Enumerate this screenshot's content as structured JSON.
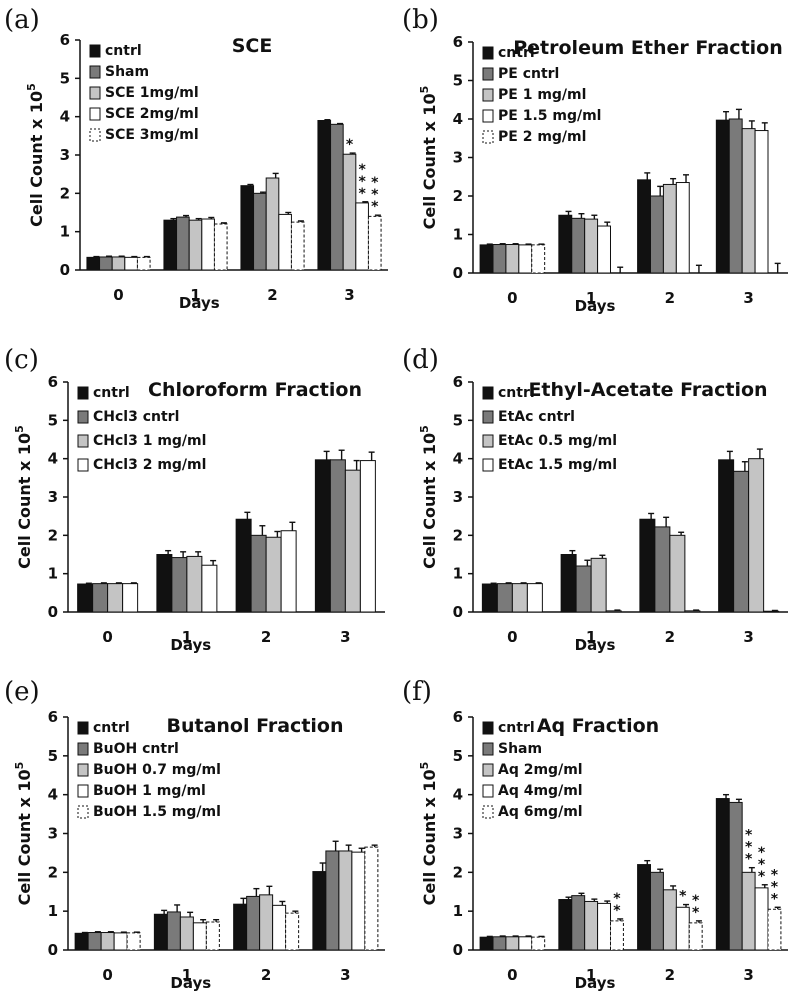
{
  "chart_data": [
    {
      "panel": "(a)",
      "type": "bar",
      "title": "SCE",
      "ylabel": "Cell Count x 10^5",
      "xlabel": "Days",
      "categories": [
        "0",
        "1",
        "2",
        "3"
      ],
      "ylim": [
        0,
        6
      ],
      "yticks": [
        0,
        1,
        2,
        3,
        4,
        5,
        6
      ],
      "legend_position": "top-left",
      "series": [
        {
          "name": "cntrl",
          "color": "#111111",
          "values": [
            0.33,
            1.3,
            2.2,
            3.9
          ],
          "errors": [
            0.02,
            0.04,
            0.03,
            0.02
          ]
        },
        {
          "name": "Sham",
          "color": "#7a7a7a",
          "values": [
            0.34,
            1.38,
            2.0,
            3.8
          ],
          "errors": [
            0.02,
            0.04,
            0.03,
            0.02
          ]
        },
        {
          "name": "SCE 1mg/ml",
          "color": "#c4c4c4",
          "values": [
            0.34,
            1.3,
            2.4,
            3.02
          ],
          "errors": [
            0.02,
            0.04,
            0.12,
            0.03
          ],
          "stars": [
            "",
            "",
            "",
            "*"
          ]
        },
        {
          "name": "SCE 2mg/ml",
          "color": "#ffffff",
          "values": [
            0.33,
            1.33,
            1.45,
            1.75
          ],
          "errors": [
            0.02,
            0.04,
            0.05,
            0.03
          ],
          "stars": [
            "",
            "",
            "",
            "***"
          ]
        },
        {
          "name": "SCE 3mg/ml",
          "color": "#ffffff",
          "dashed": true,
          "values": [
            0.33,
            1.2,
            1.25,
            1.4
          ],
          "errors": [
            0.02,
            0.03,
            0.03,
            0.03
          ],
          "stars": [
            "",
            "",
            "",
            "***"
          ]
        }
      ]
    },
    {
      "panel": "(b)",
      "type": "bar",
      "title": "Petroleum Ether Fraction",
      "ylabel": "Cell Count x 10^5",
      "xlabel": "Days",
      "categories": [
        "0",
        "1",
        "2",
        "3"
      ],
      "ylim": [
        0,
        6
      ],
      "yticks": [
        0,
        1,
        2,
        3,
        4,
        5,
        6
      ],
      "legend_position": "top-left",
      "series": [
        {
          "name": "cntrl",
          "color": "#111111",
          "values": [
            0.73,
            1.5,
            2.42,
            3.97
          ],
          "errors": [
            0.02,
            0.1,
            0.18,
            0.22
          ]
        },
        {
          "name": "PE cntrl",
          "color": "#7a7a7a",
          "values": [
            0.74,
            1.42,
            2.0,
            4.0
          ],
          "errors": [
            0.02,
            0.12,
            0.25,
            0.25
          ]
        },
        {
          "name": "PE 1 mg/ml",
          "color": "#c4c4c4",
          "values": [
            0.74,
            1.4,
            2.3,
            3.75
          ],
          "errors": [
            0.02,
            0.1,
            0.15,
            0.2
          ]
        },
        {
          "name": "PE 1.5 mg/ml",
          "color": "#ffffff",
          "values": [
            0.73,
            1.22,
            2.35,
            3.7
          ],
          "errors": [
            0.02,
            0.1,
            0.2,
            0.2
          ]
        },
        {
          "name": "PE 2 mg/ml",
          "color": "#ffffff",
          "dashed": true,
          "values": [
            0.73,
            0.0,
            0.0,
            0.0
          ],
          "errors": [
            0.02,
            0.15,
            0.2,
            0.25
          ]
        }
      ]
    },
    {
      "panel": "(c)",
      "type": "bar",
      "title": "Chloroform Fraction",
      "ylabel": "Cell Count x 10^5",
      "xlabel": "Days",
      "categories": [
        "0",
        "1",
        "2",
        "3"
      ],
      "ylim": [
        0,
        6
      ],
      "yticks": [
        0,
        1,
        2,
        3,
        4,
        5,
        6
      ],
      "legend_position": "top-left",
      "series": [
        {
          "name": "cntrl",
          "color": "#111111",
          "values": [
            0.73,
            1.5,
            2.42,
            3.97
          ],
          "errors": [
            0.02,
            0.1,
            0.18,
            0.22
          ]
        },
        {
          "name": "CHcl3 cntrl",
          "color": "#7a7a7a",
          "values": [
            0.74,
            1.42,
            2.0,
            3.97
          ],
          "errors": [
            0.02,
            0.15,
            0.25,
            0.25
          ]
        },
        {
          "name": "CHcl3 1 mg/ml",
          "color": "#c4c4c4",
          "values": [
            0.74,
            1.45,
            1.95,
            3.7
          ],
          "errors": [
            0.02,
            0.12,
            0.15,
            0.25
          ]
        },
        {
          "name": "CHcl3 2 mg/ml",
          "color": "#ffffff",
          "values": [
            0.74,
            1.22,
            2.12,
            3.95
          ],
          "errors": [
            0.02,
            0.12,
            0.22,
            0.22
          ]
        }
      ]
    },
    {
      "panel": "(d)",
      "type": "bar",
      "title": "Ethyl-Acetate Fraction",
      "ylabel": "Cell Count x 10^5",
      "xlabel": "Days",
      "categories": [
        "0",
        "1",
        "2",
        "3"
      ],
      "ylim": [
        0,
        6
      ],
      "yticks": [
        0,
        1,
        2,
        3,
        4,
        5,
        6
      ],
      "legend_position": "top-left",
      "series": [
        {
          "name": "cntrl",
          "color": "#111111",
          "values": [
            0.73,
            1.5,
            2.42,
            3.97
          ],
          "errors": [
            0.02,
            0.1,
            0.15,
            0.22
          ]
        },
        {
          "name": "EtAc cntrl",
          "color": "#7a7a7a",
          "values": [
            0.74,
            1.2,
            2.22,
            3.67
          ],
          "errors": [
            0.02,
            0.15,
            0.25,
            0.25
          ]
        },
        {
          "name": "EtAc 0.5 mg/ml",
          "color": "#c4c4c4",
          "values": [
            0.74,
            1.4,
            2.0,
            4.0
          ],
          "errors": [
            0.02,
            0.08,
            0.08,
            0.25
          ]
        },
        {
          "name": "EtAc 1.5 mg/ml",
          "color": "#ffffff",
          "values": [
            0.74,
            0.03,
            0.03,
            0.02
          ],
          "errors": [
            0.02,
            0.02,
            0.02,
            0.02
          ]
        }
      ]
    },
    {
      "panel": "(e)",
      "type": "bar",
      "title": "Butanol Fraction",
      "ylabel": "Cell Count x 10^5",
      "xlabel": "Days",
      "categories": [
        "0",
        "1",
        "2",
        "3"
      ],
      "ylim": [
        0,
        6
      ],
      "yticks": [
        0,
        1,
        2,
        3,
        4,
        5,
        6
      ],
      "legend_position": "top-left",
      "series": [
        {
          "name": "cntrl",
          "color": "#111111",
          "values": [
            0.43,
            0.92,
            1.18,
            2.02
          ],
          "errors": [
            0.02,
            0.1,
            0.15,
            0.22
          ]
        },
        {
          "name": "BuOH cntrl",
          "color": "#7a7a7a",
          "values": [
            0.45,
            0.98,
            1.38,
            2.55
          ],
          "errors": [
            0.02,
            0.18,
            0.2,
            0.25
          ]
        },
        {
          "name": "BuOH 0.7 mg/ml",
          "color": "#c4c4c4",
          "values": [
            0.45,
            0.85,
            1.42,
            2.55
          ],
          "errors": [
            0.02,
            0.12,
            0.22,
            0.15
          ]
        },
        {
          "name": "BuOH 1 mg/ml",
          "color": "#ffffff",
          "values": [
            0.44,
            0.7,
            1.15,
            2.52
          ],
          "errors": [
            0.02,
            0.08,
            0.1,
            0.1
          ]
        },
        {
          "name": "BuOH 1.5 mg/ml",
          "color": "#ffffff",
          "dashed": true,
          "values": [
            0.44,
            0.72,
            0.95,
            2.65
          ],
          "errors": [
            0.02,
            0.06,
            0.05,
            0.05
          ]
        }
      ]
    },
    {
      "panel": "(f)",
      "type": "bar",
      "title": "Aq Fraction",
      "ylabel": "Cell Count x 10^5",
      "xlabel": "Days",
      "categories": [
        "0",
        "1",
        "2",
        "3"
      ],
      "ylim": [
        0,
        6
      ],
      "yticks": [
        0,
        1,
        2,
        3,
        4,
        5,
        6
      ],
      "legend_position": "top-left",
      "series": [
        {
          "name": "cntrl",
          "color": "#111111",
          "values": [
            0.33,
            1.3,
            2.2,
            3.9
          ],
          "errors": [
            0.02,
            0.06,
            0.1,
            0.1
          ]
        },
        {
          "name": "Sham",
          "color": "#7a7a7a",
          "values": [
            0.34,
            1.4,
            2.0,
            3.8
          ],
          "errors": [
            0.02,
            0.06,
            0.08,
            0.08
          ]
        },
        {
          "name": "Aq 2mg/ml",
          "color": "#c4c4c4",
          "values": [
            0.34,
            1.25,
            1.55,
            2.0
          ],
          "errors": [
            0.02,
            0.06,
            0.1,
            0.12
          ],
          "stars": [
            "",
            "",
            "",
            "***"
          ]
        },
        {
          "name": "Aq 4mg/ml",
          "color": "#ffffff",
          "values": [
            0.34,
            1.2,
            1.1,
            1.6
          ],
          "errors": [
            0.02,
            0.06,
            0.07,
            0.08
          ],
          "stars": [
            "",
            "",
            "*",
            "***"
          ]
        },
        {
          "name": "Aq 6mg/ml",
          "color": "#ffffff",
          "dashed": true,
          "values": [
            0.33,
            0.75,
            0.7,
            1.05
          ],
          "errors": [
            0.02,
            0.05,
            0.05,
            0.05
          ],
          "stars": [
            "",
            "**",
            "**",
            "***"
          ]
        }
      ]
    }
  ]
}
